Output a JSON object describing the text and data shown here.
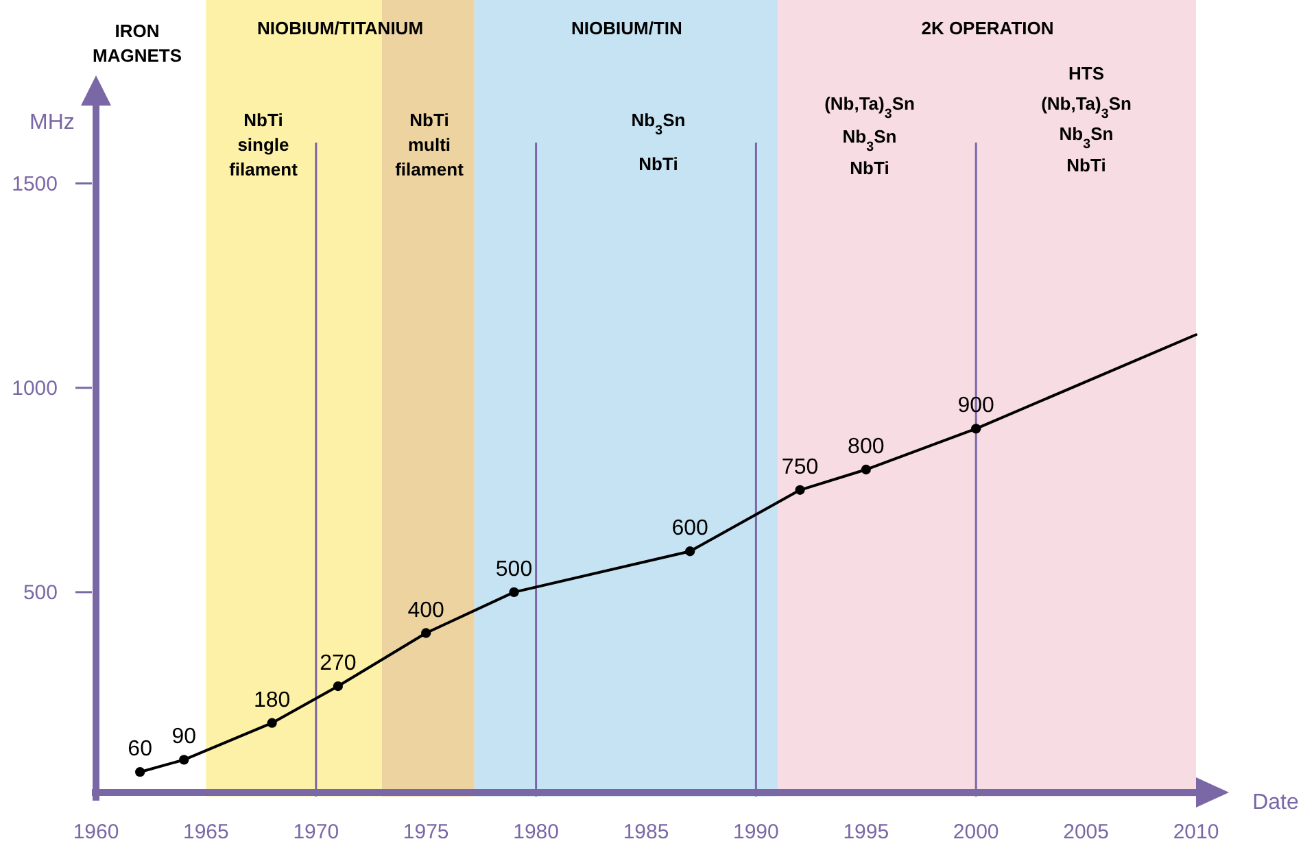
{
  "chart_data": {
    "type": "line",
    "xlabel": "Date",
    "ylabel": "MHz",
    "xlim": [
      1960,
      2010
    ],
    "ylim": [
      0,
      1600
    ],
    "xticks": [
      1960,
      1965,
      1970,
      1975,
      1980,
      1985,
      1990,
      1995,
      2000,
      2005,
      2010
    ],
    "yticks": [
      500,
      1000,
      1500
    ],
    "grid": false,
    "series": [
      {
        "color": "#000000",
        "marker": "none",
        "x": [
          1962,
          1964,
          1968,
          1971,
          1975,
          1979,
          1987,
          1992,
          1995,
          2000,
          2010
        ],
        "values": [
          60,
          90,
          180,
          270,
          400,
          500,
          600,
          750,
          800,
          900,
          1130
        ]
      },
      {
        "type": "scatter",
        "color": "#000000",
        "marker": "circle",
        "x": [
          1962,
          1964,
          1968,
          1971,
          1975,
          1979,
          1987,
          1992,
          1995,
          2000
        ],
        "values": [
          60,
          90,
          180,
          270,
          400,
          500,
          600,
          750,
          800,
          900
        ],
        "value_labels": [
          "60",
          "90",
          "180",
          "270",
          "400",
          "500",
          "600",
          "750",
          "800",
          "900"
        ]
      }
    ],
    "bands": [
      {
        "axis": "x",
        "from": 1965,
        "to": 1973,
        "color": "#fcf1a6"
      },
      {
        "axis": "x",
        "from": 1973,
        "to": 1977.2,
        "color": "#ecd3a0"
      },
      {
        "axis": "x",
        "from": 1977.2,
        "to": 1991,
        "color": "#c6e3f3"
      },
      {
        "axis": "x",
        "from": 1991,
        "to": 2010,
        "color": "#f7dde3"
      }
    ],
    "ref_lines": [
      {
        "axis": "x",
        "value": 1970,
        "color": "#7a68a6"
      },
      {
        "axis": "x",
        "value": 1980,
        "color": "#7a68a6"
      },
      {
        "axis": "x",
        "value": 1990,
        "color": "#7a68a6"
      },
      {
        "axis": "x",
        "value": 2000,
        "color": "#7a68a6"
      }
    ],
    "annotations": [
      "IRON",
      "MAGNETS",
      "NIOBIUM/TITANIUM",
      "NIOBIUM/TIN",
      "2K OPERATION",
      "NbTi",
      "single",
      "filament",
      "NbTi",
      "multi",
      "filament",
      "Nb$_{3}$Sn",
      "NbTi",
      "(Nb,Ta)$_{3}$Sn",
      "Nb$_{3}$Sn",
      "NbTi",
      "HTS",
      "(Nb,Ta)$_{3}$Sn",
      "Nb$_{3}$Sn",
      "NbTi"
    ]
  }
}
